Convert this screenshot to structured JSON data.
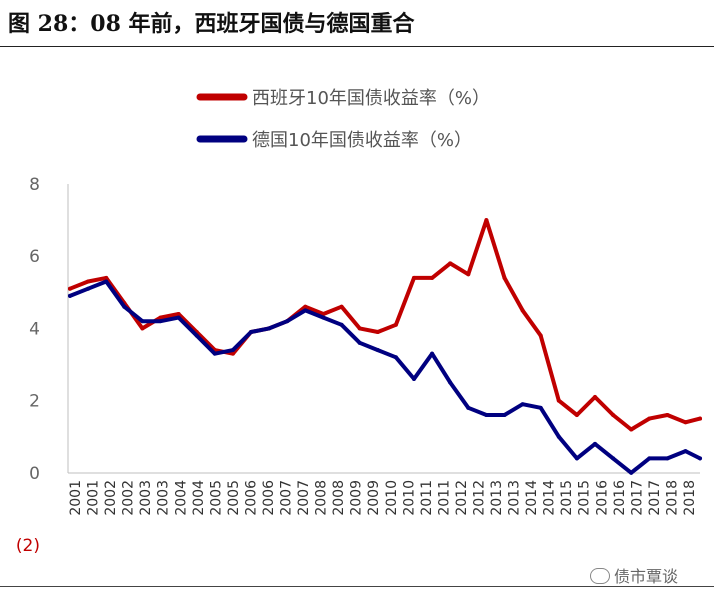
{
  "figure": {
    "title": "图 28：08 年前，西班牙国债与德国重合",
    "watermark": "债市覃谈"
  },
  "chart_data": {
    "type": "line",
    "title": "08 年前，西班牙国债与德国重合",
    "xlabel": "",
    "ylabel": "",
    "ylim": [
      -2,
      8
    ],
    "yticks": [
      "8",
      "6",
      "4",
      "2",
      "0",
      "(2)"
    ],
    "xticks": [
      "2001",
      "2001",
      "2002",
      "2002",
      "2003",
      "2003",
      "2004",
      "2004",
      "2005",
      "2005",
      "2006",
      "2006",
      "2007",
      "2007",
      "2008",
      "2008",
      "2009",
      "2009",
      "2010",
      "2010",
      "2011",
      "2011",
      "2012",
      "2012",
      "2013",
      "2013",
      "2014",
      "2014",
      "2015",
      "2015",
      "2016",
      "2016",
      "2017",
      "2017",
      "2018",
      "2018"
    ],
    "legend_position": "top",
    "x": [
      2001.0,
      2001.5,
      2002.0,
      2002.5,
      2003.0,
      2003.5,
      2004.0,
      2004.5,
      2005.0,
      2005.5,
      2006.0,
      2006.5,
      2007.0,
      2007.5,
      2008.0,
      2008.5,
      2009.0,
      2009.5,
      2010.0,
      2010.5,
      2011.0,
      2011.5,
      2012.0,
      2012.5,
      2013.0,
      2013.5,
      2014.0,
      2014.5,
      2015.0,
      2015.5,
      2016.0,
      2016.5,
      2017.0,
      2017.5,
      2018.0,
      2018.4
    ],
    "series": [
      {
        "name": "西班牙10年国债收益率（%）",
        "color": "#c00000",
        "values": [
          5.1,
          5.3,
          5.4,
          4.7,
          4.0,
          4.3,
          4.4,
          3.9,
          3.4,
          3.3,
          3.9,
          4.0,
          4.2,
          4.6,
          4.4,
          4.6,
          4.0,
          3.9,
          4.1,
          5.4,
          5.4,
          5.8,
          5.5,
          7.0,
          5.4,
          4.5,
          3.8,
          2.0,
          1.6,
          2.1,
          1.6,
          1.2,
          1.5,
          1.6,
          1.4,
          1.5
        ]
      },
      {
        "name": "德国10年国债收益率（%）",
        "color": "#000080",
        "values": [
          4.9,
          5.1,
          5.3,
          4.6,
          4.2,
          4.2,
          4.3,
          3.8,
          3.3,
          3.4,
          3.9,
          4.0,
          4.2,
          4.5,
          4.3,
          4.1,
          3.6,
          3.4,
          3.2,
          2.6,
          3.3,
          2.5,
          1.8,
          1.6,
          1.6,
          1.9,
          1.8,
          1.0,
          0.4,
          0.8,
          0.4,
          0.0,
          0.4,
          0.4,
          0.6,
          0.4
        ]
      }
    ]
  }
}
